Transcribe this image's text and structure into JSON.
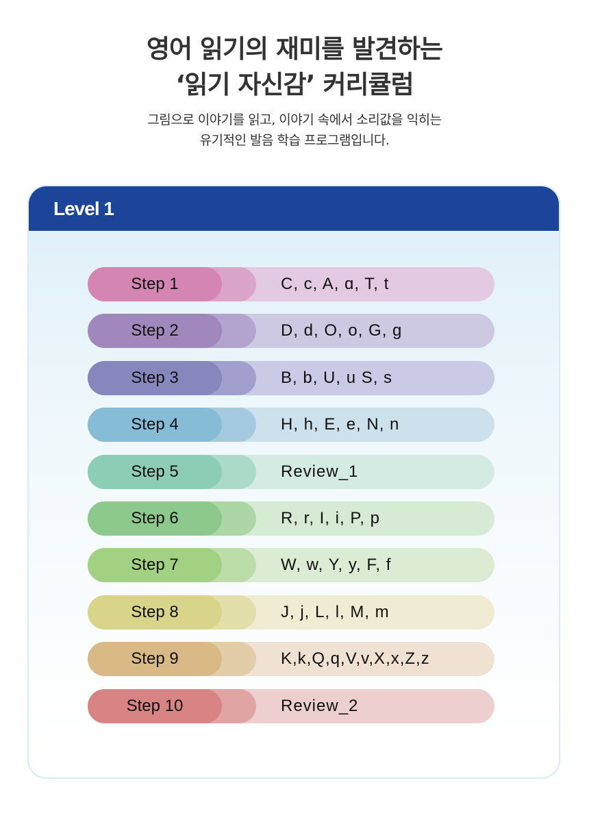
{
  "title": {
    "line1": "영어 읽기의 재미를 발견하는",
    "line2": "‘읽기 자신감’ 커리큘럼"
  },
  "subtitle": {
    "line1": "그림으로 이야기를 읽고, 이야기 속에서 소리값을 익히는",
    "line2": "유기적인 발음 학습 프로그램입니다."
  },
  "level": {
    "label": "Level 1",
    "header_color": "#1c4499"
  },
  "steps": [
    {
      "label": "Step 1",
      "letters": "C, c, A, ɑ, T, t",
      "colors": [
        "#d585b4",
        "#dba5c9",
        "#e3cae2"
      ]
    },
    {
      "label": "Step 2",
      "letters": "D, d, O, o, G, g",
      "colors": [
        "#a088bd",
        "#b3a3cf",
        "#cdc9e3"
      ]
    },
    {
      "label": "Step 3",
      "letters": "B, b, U, u S, s",
      "colors": [
        "#8786bd",
        "#a09fce",
        "#c8cae6"
      ]
    },
    {
      "label": "Step 4",
      "letters": "H, h, E, e, N, n",
      "colors": [
        "#86bcd6",
        "#a5cae0",
        "#cde1ed"
      ]
    },
    {
      "label": "Step 5",
      "letters": "Review_1",
      "colors": [
        "#8dcdb5",
        "#acdac8",
        "#d4ebe4"
      ]
    },
    {
      "label": "Step 6",
      "letters": "R, r, I, i, P, p",
      "colors": [
        "#8dc98c",
        "#acd6a5",
        "#d7ead4"
      ]
    },
    {
      "label": "Step 7",
      "letters": "W, w, Y, y, F, f",
      "colors": [
        "#a3d183",
        "#bcdda8",
        "#dcebd4"
      ]
    },
    {
      "label": "Step 8",
      "letters": "J, j, L, l, M, m",
      "colors": [
        "#d8d58a",
        "#e2dfaa",
        "#f0ecd4"
      ]
    },
    {
      "label": "Step 9",
      "letters": "K,k,Q,q,V,v,X,x,Z,z",
      "colors": [
        "#d9b986",
        "#e3cca8",
        "#f0e2d2"
      ]
    },
    {
      "label": "Step 10",
      "letters": "Review_2",
      "colors": [
        "#d88384",
        "#e0a4a3",
        "#edcfd0"
      ]
    }
  ]
}
